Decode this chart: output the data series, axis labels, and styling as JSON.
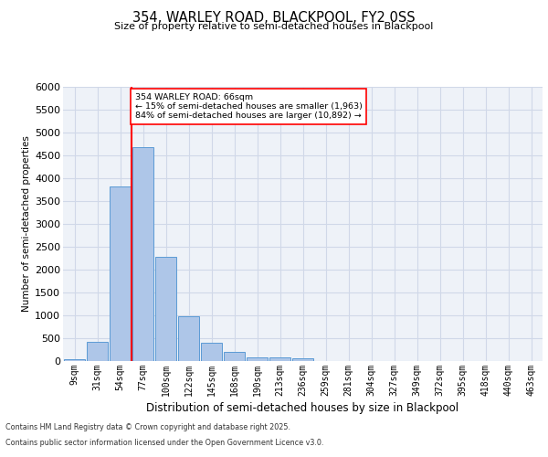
{
  "title": "354, WARLEY ROAD, BLACKPOOL, FY2 0SS",
  "subtitle": "Size of property relative to semi-detached houses in Blackpool",
  "xlabel": "Distribution of semi-detached houses by size in Blackpool",
  "ylabel": "Number of semi-detached properties",
  "categories": [
    "9sqm",
    "31sqm",
    "54sqm",
    "77sqm",
    "100sqm",
    "122sqm",
    "145sqm",
    "168sqm",
    "190sqm",
    "213sqm",
    "236sqm",
    "259sqm",
    "281sqm",
    "304sqm",
    "327sqm",
    "349sqm",
    "372sqm",
    "395sqm",
    "418sqm",
    "440sqm",
    "463sqm"
  ],
  "bar_heights": [
    50,
    430,
    3830,
    4680,
    2290,
    980,
    410,
    200,
    90,
    75,
    65,
    0,
    0,
    0,
    0,
    0,
    0,
    0,
    0,
    0,
    0
  ],
  "bar_color": "#aec6e8",
  "bar_edge_color": "#5b9bd5",
  "grid_color": "#d0d8e8",
  "bg_color": "#eef2f8",
  "vline_x": 2.5,
  "vline_color": "red",
  "annotation_title": "354 WARLEY ROAD: 66sqm",
  "annotation_line1": "← 15% of semi-detached houses are smaller (1,963)",
  "annotation_line2": "84% of semi-detached houses are larger (10,892) →",
  "ylim": [
    0,
    6000
  ],
  "yticks": [
    0,
    500,
    1000,
    1500,
    2000,
    2500,
    3000,
    3500,
    4000,
    4500,
    5000,
    5500,
    6000
  ],
  "footnote1": "Contains HM Land Registry data © Crown copyright and database right 2025.",
  "footnote2": "Contains public sector information licensed under the Open Government Licence v3.0."
}
